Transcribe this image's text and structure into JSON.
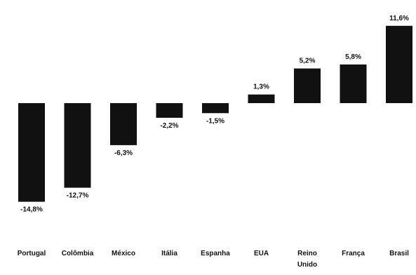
{
  "chart_data": {
    "type": "bar",
    "categories": [
      "Portugal",
      "Colômbia",
      "México",
      "Itália",
      "Espanha",
      "EUA",
      "Reino Unido",
      "França",
      "Brasil"
    ],
    "category_lines": [
      [
        "Portugal"
      ],
      [
        "Colômbia"
      ],
      [
        "México"
      ],
      [
        "Itália"
      ],
      [
        "Espanha"
      ],
      [
        "EUA"
      ],
      [
        "Reino",
        "Unido"
      ],
      [
        "França"
      ],
      [
        "Brasil"
      ]
    ],
    "values": [
      -14.8,
      -12.7,
      -6.3,
      -2.2,
      -1.5,
      1.3,
      5.2,
      5.8,
      11.6
    ],
    "data_labels": [
      "-14,8%",
      "-12,7%",
      "-6,3%",
      "-2,2%",
      "-1,5%",
      "1,3%",
      "5,2%",
      "5,8%",
      "11,6%"
    ],
    "title": "",
    "xlabel": "",
    "ylabel": "",
    "ylim": [
      -16,
      12
    ],
    "grid": false,
    "legend": "none",
    "bar_color": "#111111",
    "label_color": "#111111",
    "background": "#ffffff"
  }
}
